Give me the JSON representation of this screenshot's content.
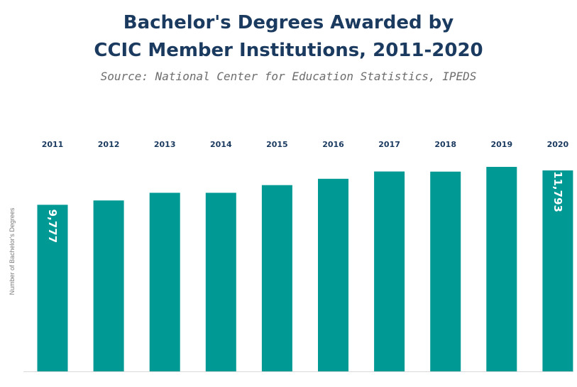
{
  "chart_data": {
    "type": "bar",
    "title_line1": "Bachelor's Degrees Awarded by",
    "title_line2": "CCIC Member Institutions, 2011-2020",
    "subtitle": "Source: National Center for Education Statistics, IPEDS",
    "xlabel": "",
    "ylabel": "Number of Bachelor's Degrees",
    "categories": [
      "2011",
      "2012",
      "2013",
      "2014",
      "2015",
      "2016",
      "2017",
      "2018",
      "2019",
      "2020"
    ],
    "values": [
      9777,
      10030,
      10480,
      10480,
      10930,
      11300,
      11730,
      11720,
      12000,
      11793
    ],
    "data_labels": {
      "0": "9,777",
      "9": "11,793"
    },
    "ylim": [
      0,
      12500
    ],
    "bar_color": "#009994",
    "axis_color": "#d9d9d9",
    "tick_labels_position": "top",
    "grid": false,
    "legend": "none"
  }
}
